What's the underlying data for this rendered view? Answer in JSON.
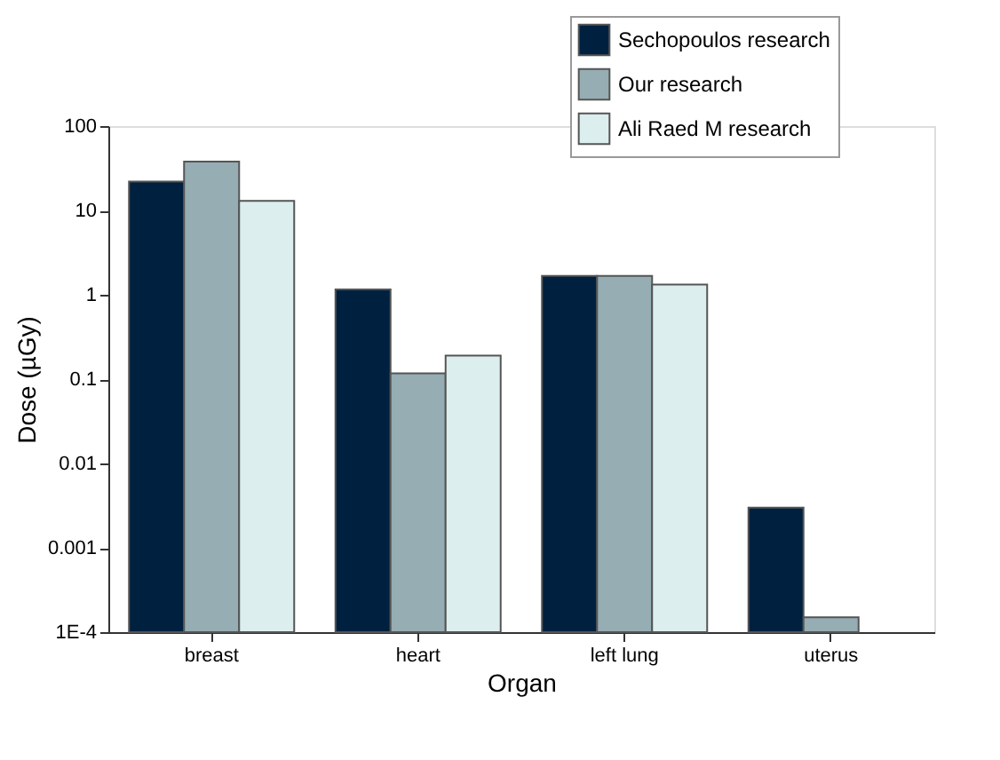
{
  "chart_data": {
    "type": "bar",
    "xlabel": "Organ",
    "ylabel": "Dose (µGy)",
    "categories": [
      "breast",
      "heart",
      "left lung",
      "uterus"
    ],
    "series": [
      {
        "name": "Sechopoulos research",
        "color": "#00203f",
        "values": [
          22,
          1.16,
          1.67,
          0.003
        ]
      },
      {
        "name": "Our research",
        "color": "#95adb3",
        "values": [
          38,
          0.117,
          1.67,
          0.00015
        ]
      },
      {
        "name": "Ali Raed M research",
        "color": "#dceeee",
        "values": [
          13,
          0.19,
          1.32,
          null
        ]
      }
    ],
    "log": true,
    "ylim": [
      0.0001,
      100
    ],
    "yticks": [
      {
        "value": 0.0001,
        "label": "1E-4"
      },
      0.001,
      0.01,
      0.1,
      1,
      10,
      100
    ],
    "grid": false,
    "legend": "top right"
  }
}
